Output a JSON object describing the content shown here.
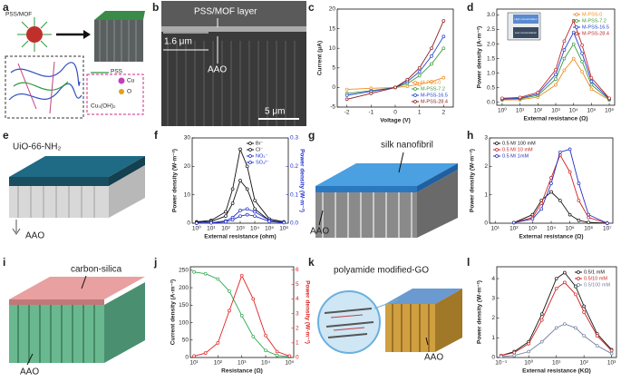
{
  "panels": [
    {
      "label": "a",
      "texts": [
        "PSS/MOF",
        "PSS",
        "Cu",
        "O",
        "Cu₃(OH)₂"
      ]
    },
    {
      "label": "b",
      "texts": [
        "PSS/MOF layer",
        "1.6 μm",
        "AAO",
        "5 μm"
      ]
    },
    {
      "label": "c",
      "chart": {
        "type": "line",
        "xlabel": "Voltage (V)",
        "ylabel": "Current (μA)",
        "xlim": [
          -2.4,
          2.4
        ],
        "ylim": [
          -5,
          20
        ],
        "xticks": [
          -2,
          -1,
          0,
          1,
          2
        ],
        "yticks": [
          -5,
          0,
          5,
          10,
          15,
          20
        ],
        "series": [
          {
            "name": "M-PSS-0",
            "color": "#f28a1e",
            "x": [
              -2,
              -1,
              0,
              0.5,
              1,
              1.5,
              2
            ],
            "values": [
              -0.5,
              -0.2,
              0,
              0.3,
              0.8,
              1.5,
              2.5
            ]
          },
          {
            "name": "M-PSS-7.2",
            "color": "#3a9a3a",
            "x": [
              -2,
              -1,
              0,
              0.5,
              1,
              1.5,
              2
            ],
            "values": [
              -1.5,
              -0.8,
              0,
              1,
              3,
              6,
              10
            ]
          },
          {
            "name": "M-PSS-16.5",
            "color": "#2040d0",
            "x": [
              -2,
              -1,
              0,
              0.5,
              1,
              1.5,
              2
            ],
            "values": [
              -2,
              -1,
              0,
              1.5,
              4,
              8,
              13
            ]
          },
          {
            "name": "M-PSS-28.4",
            "color": "#8a1a1a",
            "x": [
              -2,
              -1,
              0,
              0.5,
              1,
              1.5,
              2
            ],
            "values": [
              -3,
              -1.5,
              0,
              2,
              5,
              10,
              17
            ]
          }
        ]
      }
    },
    {
      "label": "d",
      "texts": [
        "High concentration",
        "Low concentration"
      ],
      "chart": {
        "type": "line",
        "xlabel": "External resistance (Ω)",
        "ylabel": "Power density (A·m⁻²)",
        "xlog": true,
        "xlim": [
          0.5,
          2000000
        ],
        "ylim": [
          -0.1,
          3.2
        ],
        "xticks": [
          {
            "value": 1,
            "label": "10⁰"
          },
          {
            "value": 10,
            "label": "10¹"
          },
          {
            "value": 100,
            "label": "10²"
          },
          {
            "value": 1000,
            "label": "10³"
          },
          {
            "value": 10000,
            "label": "10⁴"
          },
          {
            "value": 100000,
            "label": "10⁵"
          },
          {
            "value": 1000000,
            "label": "10⁶"
          }
        ],
        "yticks": [
          {
            "value": 0,
            "label": "0.0"
          },
          0.5,
          {
            "value": 1,
            "label": "1.0"
          },
          1.5,
          {
            "value": 2,
            "label": "2.0"
          },
          2.5,
          {
            "value": 3,
            "label": "3.0"
          }
        ],
        "series": [
          {
            "name": "M-PSS-0",
            "color": "#f28a1e",
            "x": [
              1,
              10,
              100,
              1000,
              3000,
              10000,
              30000,
              100000,
              1000000
            ],
            "values": [
              0.08,
              0.09,
              0.18,
              0.6,
              1.1,
              1.5,
              1.05,
              0.45,
              0.08
            ]
          },
          {
            "name": "M-PSS-7.2",
            "color": "#3a9a3a",
            "x": [
              1,
              10,
              100,
              1000,
              3000,
              10000,
              30000,
              100000,
              1000000
            ],
            "values": [
              0.1,
              0.12,
              0.24,
              0.8,
              1.5,
              2.0,
              1.4,
              0.6,
              0.1
            ]
          },
          {
            "name": "M-PSS-16.5",
            "color": "#2040d0",
            "x": [
              1,
              10,
              100,
              1000,
              3000,
              10000,
              30000,
              100000,
              1000000
            ],
            "values": [
              0.12,
              0.14,
              0.29,
              0.96,
              1.8,
              2.4,
              1.68,
              0.72,
              0.12
            ]
          },
          {
            "name": "M-PSS-28.4",
            "color": "#c0282a",
            "x": [
              1,
              10,
              100,
              1000,
              3000,
              10000,
              30000,
              100000,
              1000000
            ],
            "values": [
              0.14,
              0.17,
              0.34,
              1.12,
              2.1,
              2.8,
              1.96,
              0.84,
              0.14
            ]
          }
        ]
      }
    },
    {
      "label": "e",
      "texts": [
        "UiO-66-NH₂",
        "AAO"
      ]
    },
    {
      "label": "f",
      "chart": {
        "type": "line",
        "xlabel": "External resistance (ohm)",
        "ylabel": "Power density (W·m⁻²)",
        "y2label": "Power density (W·m⁻²)",
        "xlog": true,
        "xlim": [
          0.5,
          2000000
        ],
        "ylim": [
          0,
          30
        ],
        "y2lim": [
          0,
          0.3
        ],
        "xticks": [
          {
            "value": 1,
            "label": "10⁰"
          },
          {
            "value": 10,
            "label": "10¹"
          },
          {
            "value": 100,
            "label": "10²"
          },
          {
            "value": 1000,
            "label": "10³"
          },
          {
            "value": 10000,
            "label": "10⁴"
          },
          {
            "value": 100000,
            "label": "10⁵"
          },
          {
            "value": 1000000,
            "label": "10⁶"
          }
        ],
        "yticks": [
          0,
          10,
          20,
          30
        ],
        "y2ticks": [
          {
            "value": 0,
            "label": "0.0"
          },
          0.1,
          0.2,
          0.3
        ],
        "series": [
          {
            "name": "Br⁻",
            "color": "#111111",
            "x": [
              1,
              10,
              100,
              300,
              1000,
              3000,
              10000,
              100000,
              1000000
            ],
            "values": [
              0.5,
              1,
              4,
              12,
              26,
              20,
              8,
              1.5,
              0.5
            ]
          },
          {
            "name": "Cl⁻",
            "color": "#111111",
            "x": [
              1,
              10,
              100,
              300,
              1000,
              3000,
              10000,
              100000,
              1000000
            ],
            "values": [
              0.3,
              0.6,
              2.5,
              7,
              15,
              12,
              5,
              1,
              0.3
            ]
          },
          {
            "name": "NO₃⁻",
            "color": "#1f2fd0",
            "axis": "y2",
            "x": [
              1,
              10,
              100,
              300,
              1000,
              3000,
              10000,
              100000,
              1000000
            ],
            "values": [
              0,
              0.002,
              0.008,
              0.02,
              0.045,
              0.05,
              0.04,
              0.01,
              0.003
            ]
          },
          {
            "name": "SO₄²⁻",
            "color": "#1f2fd0",
            "axis": "y2",
            "x": [
              1,
              10,
              100,
              300,
              1000,
              3000,
              10000,
              100000,
              1000000
            ],
            "values": [
              0,
              0.001,
              0.005,
              0.012,
              0.025,
              0.03,
              0.025,
              0.006,
              0.002
            ]
          }
        ]
      }
    },
    {
      "label": "g",
      "texts": [
        "silk nanofibril",
        "AAO"
      ]
    },
    {
      "label": "h",
      "chart": {
        "type": "line",
        "xlabel": "External resistance (Ω)",
        "ylabel": "Power density (W·m⁻²)",
        "xlog": true,
        "xlim": [
          5,
          20000000
        ],
        "ylim": [
          0,
          3
        ],
        "xticks": [
          {
            "value": 10,
            "label": "10¹"
          },
          {
            "value": 100,
            "label": "10²"
          },
          {
            "value": 1000,
            "label": "10³"
          },
          {
            "value": 10000,
            "label": "10⁴"
          },
          {
            "value": 100000,
            "label": "10⁵"
          },
          {
            "value": 1000000,
            "label": "10⁶"
          },
          {
            "value": 10000000,
            "label": "10⁷"
          }
        ],
        "yticks": [
          0,
          1,
          2,
          3
        ],
        "series": [
          {
            "name": "0.5 M/ 100 mM",
            "color": "#111111",
            "x": [
              100,
              1000,
              3000,
              10000,
              30000,
              100000,
              300000,
              1000000,
              10000000
            ],
            "values": [
              0.02,
              0.3,
              0.8,
              1.1,
              0.8,
              0.3,
              0.1,
              0.03,
              0
            ]
          },
          {
            "name": "0.5 M/ 10 mM",
            "color": "#d02020",
            "x": [
              100,
              1000,
              3000,
              10000,
              30000,
              100000,
              300000,
              1000000,
              10000000
            ],
            "values": [
              0.02,
              0.2,
              0.7,
              1.6,
              2.4,
              1.8,
              0.8,
              0.2,
              0
            ]
          },
          {
            "name": "0.5 M/ 1mM",
            "color": "#2030c0",
            "x": [
              100,
              1000,
              3000,
              10000,
              30000,
              100000,
              300000,
              1000000,
              10000000
            ],
            "values": [
              0.02,
              0.15,
              0.5,
              1.4,
              2.5,
              2.6,
              1.4,
              0.3,
              0
            ]
          }
        ]
      }
    },
    {
      "label": "i",
      "texts": [
        "carbon-silica",
        "AAO"
      ]
    },
    {
      "label": "j",
      "chart": {
        "type": "line",
        "xlabel": "Resistance (Ω)",
        "ylabel": "Current density (A·m⁻²)",
        "y2label": "Power density (W·m⁻²)",
        "xlog": true,
        "xlim": [
          7,
          150000
        ],
        "ylim": [
          0,
          260
        ],
        "y2lim": [
          0,
          6.2
        ],
        "xticks": [
          {
            "value": 10,
            "label": "10¹"
          },
          {
            "value": 100,
            "label": "10²"
          },
          {
            "value": 1000,
            "label": "10³"
          },
          {
            "value": 10000,
            "label": "10⁴"
          },
          {
            "value": 100000,
            "label": "10⁵"
          }
        ],
        "yticks": [
          0,
          50,
          100,
          150,
          200,
          250
        ],
        "y2ticks": [
          0,
          1,
          2,
          3,
          4,
          5,
          6
        ],
        "series": [
          {
            "name": "Current density",
            "color": "#2aa84a",
            "x": [
              10,
              30,
              100,
              300,
              1000,
              3000,
              10000,
              30000,
              100000
            ],
            "values": [
              245,
              240,
              225,
              190,
              120,
              60,
              20,
              6,
              2
            ]
          },
          {
            "name": "Power density",
            "color": "#e02020",
            "axis": "y2",
            "x": [
              10,
              30,
              100,
              300,
              1000,
              3000,
              10000,
              30000,
              100000
            ],
            "values": [
              0.1,
              0.3,
              1.0,
              3.2,
              5.6,
              4.0,
              1.5,
              0.4,
              0.1
            ]
          }
        ]
      }
    },
    {
      "label": "k",
      "texts": [
        "polyamide modified-GO",
        "AAO"
      ]
    },
    {
      "label": "l",
      "chart": {
        "type": "line",
        "xlabel": "External resistance (KΩ)",
        "ylabel": "Power density (W·m⁻²)",
        "xlog": true,
        "xlim": [
          0.07,
          1500
        ],
        "ylim": [
          0,
          4.6
        ],
        "xticks": [
          {
            "value": 0.1,
            "label": "10⁻¹"
          },
          {
            "value": 1,
            "label": "10⁰"
          },
          {
            "value": 10,
            "label": "10¹"
          },
          {
            "value": 100,
            "label": "10²"
          },
          {
            "value": 1000,
            "label": "10³"
          }
        ],
        "yticks": [
          0,
          1,
          2,
          3,
          4
        ],
        "series": [
          {
            "name": "0.5/1 mM",
            "color": "#111111",
            "x": [
              0.1,
              0.3,
              1,
              3,
              10,
              20,
              50,
              100,
              300,
              1000
            ],
            "values": [
              0.1,
              0.3,
              0.8,
              2.2,
              4.0,
              4.3,
              3.6,
              2.6,
              1.2,
              0.4
            ]
          },
          {
            "name": "0.5/10 mM",
            "color": "#d02020",
            "x": [
              0.1,
              0.3,
              1,
              3,
              10,
              20,
              50,
              100,
              300,
              1000
            ],
            "values": [
              0.1,
              0.25,
              0.7,
              1.9,
              3.5,
              3.8,
              3.2,
              2.3,
              1.1,
              0.35
            ]
          },
          {
            "name": "0.5/100 mM",
            "color": "#7080a0",
            "x": [
              0.1,
              0.3,
              1,
              3,
              10,
              20,
              50,
              100,
              300,
              1000
            ],
            "values": [
              0.05,
              0.1,
              0.3,
              0.8,
              1.5,
              1.7,
              1.5,
              1.1,
              0.6,
              0.2
            ]
          }
        ]
      }
    }
  ]
}
